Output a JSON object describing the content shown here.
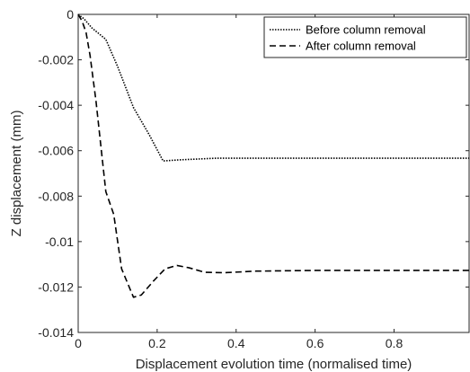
{
  "chart_data": {
    "type": "line",
    "xlabel": "Displacement evolution time (normalised time)",
    "ylabel": "Z displacement (mm)",
    "xlim": [
      0,
      0.99
    ],
    "ylim": [
      -0.014,
      0
    ],
    "x_ticks": [
      0,
      0.2,
      0.4,
      0.6,
      0.8
    ],
    "x_tick_labels": [
      "0",
      "0.2",
      "0.4",
      "0.6",
      "0.8"
    ],
    "y_ticks": [
      0,
      -0.002,
      -0.004,
      -0.006,
      -0.008,
      -0.01,
      -0.012,
      -0.014
    ],
    "y_tick_labels": [
      "0",
      "-0.002",
      "-0.004",
      "-0.006",
      "-0.008",
      "-0.01",
      "-0.012",
      "-0.014"
    ],
    "grid": false,
    "legend_position": "top-right",
    "series": [
      {
        "name": "Before column removal",
        "style": "dotted",
        "color": "#000000",
        "x": [
          0,
          0.015,
          0.035,
          0.07,
          0.1,
          0.14,
          0.18,
          0.215,
          0.26,
          0.35,
          0.5,
          0.7,
          0.99
        ],
        "y": [
          0,
          -0.0002,
          -0.0006,
          -0.0011,
          -0.0023,
          -0.0041,
          -0.0053,
          -0.00645,
          -0.0064,
          -0.00633,
          -0.00633,
          -0.00633,
          -0.00633
        ]
      },
      {
        "name": "After column removal",
        "style": "dashed",
        "color": "#000000",
        "x": [
          0,
          0.01,
          0.02,
          0.03,
          0.045,
          0.06,
          0.07,
          0.09,
          0.11,
          0.14,
          0.16,
          0.19,
          0.22,
          0.25,
          0.28,
          0.32,
          0.37,
          0.45,
          0.6,
          0.8,
          0.99
        ],
        "y": [
          0,
          -0.0003,
          -0.0008,
          -0.0018,
          -0.0038,
          -0.0062,
          -0.0078,
          -0.0088,
          -0.0112,
          -0.01245,
          -0.01235,
          -0.01175,
          -0.0112,
          -0.01105,
          -0.01115,
          -0.01135,
          -0.01137,
          -0.0113,
          -0.01127,
          -0.01127,
          -0.01127
        ]
      }
    ]
  }
}
